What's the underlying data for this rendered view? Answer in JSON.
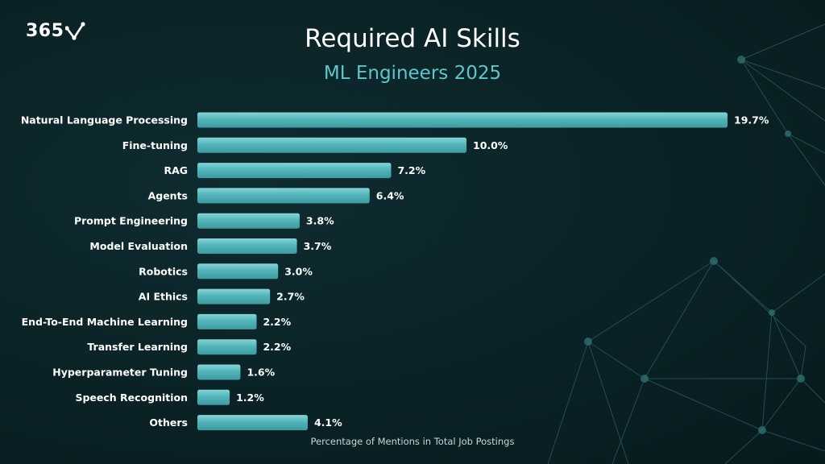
{
  "brand": {
    "logo_text": "365"
  },
  "colors": {
    "bar": "#4fb3b8",
    "bar_highlight": "#7fd0d3",
    "accent": "#5fc6cc",
    "background": "#0a2226"
  },
  "chart_data": {
    "type": "bar",
    "orientation": "horizontal",
    "title": "Required AI Skills",
    "subtitle": "ML Engineers 2025",
    "xlabel": "Percentage of Mentions in Total Job Postings",
    "ylabel": "",
    "xlim": [
      0,
      19.7
    ],
    "grid": false,
    "categories": [
      "Natural Language Processing",
      "Fine-tuning",
      "RAG",
      "Agents",
      "Prompt Engineering",
      "Model Evaluation",
      "Robotics",
      "AI Ethics",
      "End-To-End Machine Learning",
      "Transfer Learning",
      "Hyperparameter Tuning",
      "Speech Recognition",
      "Others"
    ],
    "values": [
      19.7,
      10.0,
      7.2,
      6.4,
      3.8,
      3.7,
      3.0,
      2.7,
      2.2,
      2.2,
      1.6,
      1.2,
      4.1
    ],
    "value_labels": [
      "19.7%",
      "10.0%",
      "7.2%",
      "6.4%",
      "3.8%",
      "3.7%",
      "3.0%",
      "2.7%",
      "2.2%",
      "2.2%",
      "1.6%",
      "1.2%",
      "4.1%"
    ]
  }
}
